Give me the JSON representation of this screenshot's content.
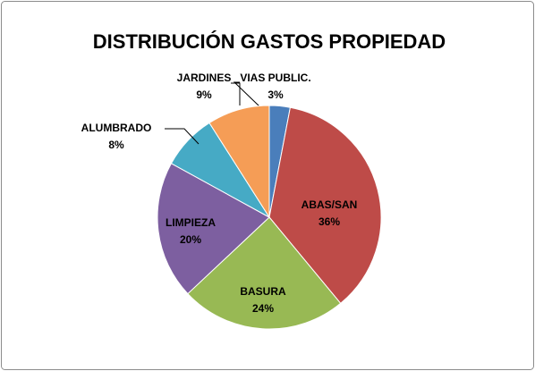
{
  "chart_data": {
    "type": "pie",
    "title": "DISTRIBUCIÓN GASTOS PROPIEDAD",
    "categories": [
      "VIAS PUBLIC.",
      "ABAS/SAN",
      "BASURA",
      "LIMPIEZA",
      "ALUMBRADO",
      "JARDINES"
    ],
    "values": [
      3,
      36,
      24,
      20,
      8,
      9
    ],
    "value_labels": [
      "3%",
      "36%",
      "24%",
      "20%",
      "8%",
      "9%"
    ],
    "colors": [
      "#4a7ebb",
      "#be4b48",
      "#98b954",
      "#7d5fa0",
      "#46aac5",
      "#f59d56"
    ]
  }
}
